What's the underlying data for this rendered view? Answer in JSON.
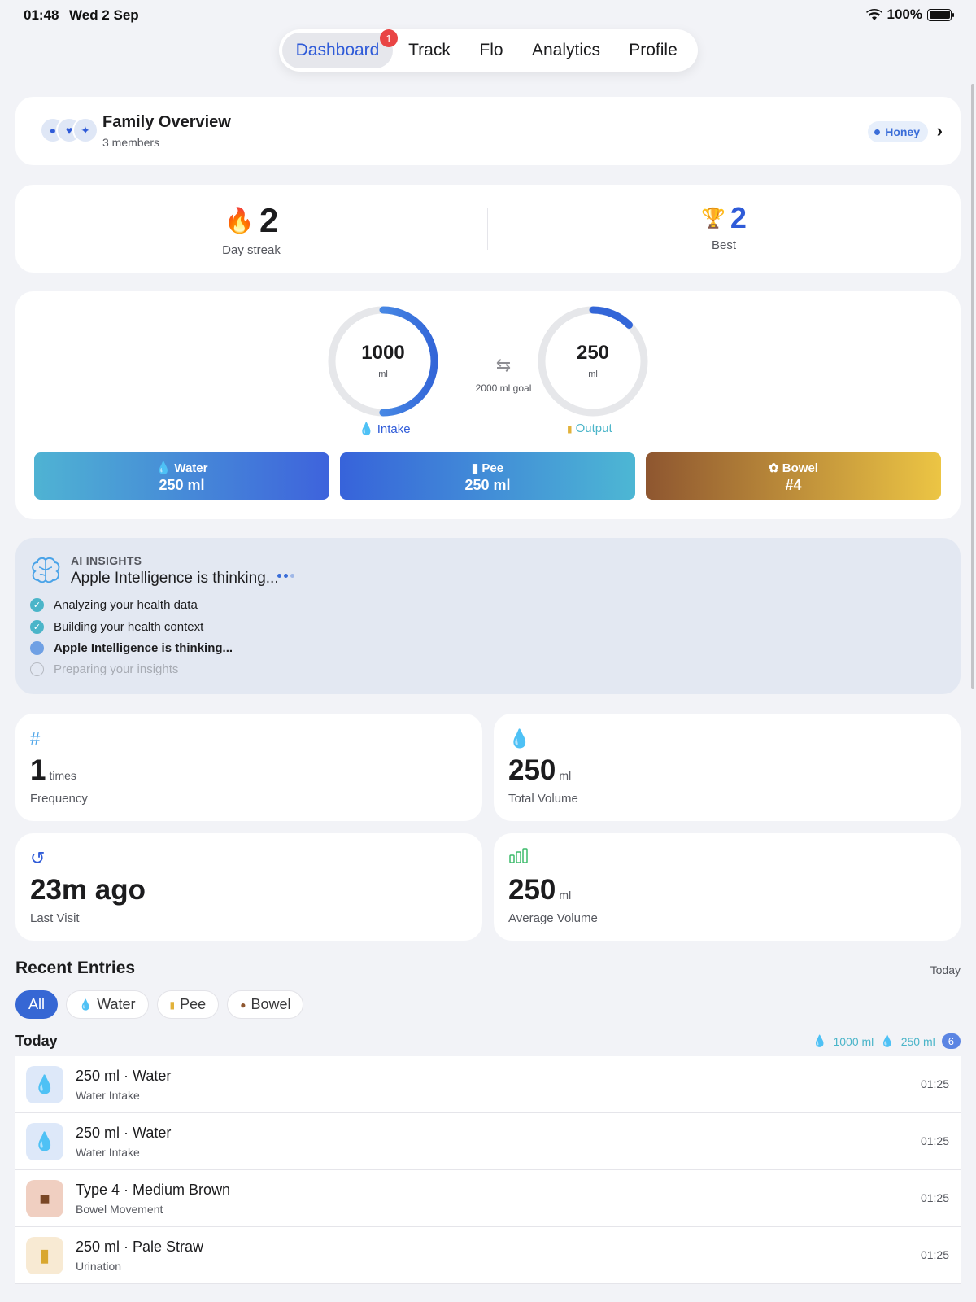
{
  "status": {
    "time": "01:48",
    "date": "Wed 2 Sep",
    "battery": "100%"
  },
  "tabs": [
    {
      "label": "Dashboard",
      "badge": "1"
    },
    {
      "label": "Track"
    },
    {
      "label": "Flo"
    },
    {
      "label": "Analytics"
    },
    {
      "label": "Profile"
    }
  ],
  "family": {
    "title": "Family Overview",
    "members": "3 members",
    "active_member": "Honey"
  },
  "streak": {
    "current": "2",
    "current_label": "Day streak",
    "best": "2",
    "best_label": "Best"
  },
  "balance": {
    "intake_value": "1000",
    "intake_unit": "ml",
    "intake_label": "Intake",
    "intake_progress": 0.5,
    "output_value": "250",
    "output_unit": "ml",
    "output_label": "Output",
    "output_progress": 0.125,
    "goal": "2000 ml goal"
  },
  "quick_add": [
    {
      "title": "Water",
      "value": "250 ml",
      "icon": "drop-icon"
    },
    {
      "title": "Pee",
      "value": "250 ml",
      "icon": "cup-icon"
    },
    {
      "title": "Bowel",
      "value": "#4",
      "icon": "flower-icon"
    }
  ],
  "ai": {
    "kicker": "AI INSIGHTS",
    "heading": "Apple Intelligence is thinking...",
    "steps": [
      {
        "label": "Analyzing your health data",
        "state": "done"
      },
      {
        "label": "Building your health context",
        "state": "done"
      },
      {
        "label": "Apple Intelligence is thinking...",
        "state": "active"
      },
      {
        "label": "Preparing your insights",
        "state": "pending"
      }
    ]
  },
  "stats": [
    {
      "value": "1",
      "unit": "times",
      "label": "Frequency",
      "icon": "hash-icon"
    },
    {
      "value": "250",
      "unit": "ml",
      "label": "Total Volume",
      "icon": "drop-icon"
    },
    {
      "value": "23m ago",
      "unit": "",
      "label": "Last Visit",
      "icon": "history-icon"
    },
    {
      "value": "250",
      "unit": "ml",
      "label": "Average Volume",
      "icon": "bars-icon"
    }
  ],
  "recent": {
    "title": "Recent Entries",
    "range": "Today",
    "filters": [
      "All",
      "Water",
      "Pee",
      "Bowel"
    ],
    "group": "Today",
    "sum_intake": "1000 ml",
    "sum_output": "250 ml",
    "count": "6",
    "entries": [
      {
        "title": "250 ml · Water",
        "subtitle": "Water Intake",
        "time": "01:25",
        "icon": "water-drop-icon"
      },
      {
        "title": "250 ml · Water",
        "subtitle": "Water Intake",
        "time": "01:25",
        "icon": "water-drop-icon"
      },
      {
        "title": "Type 4 · Medium Brown",
        "subtitle": "Bowel Movement",
        "time": "01:25",
        "icon": "bowel-icon"
      },
      {
        "title": "250 ml · Pale Straw",
        "subtitle": "Urination",
        "time": "01:25",
        "icon": "urine-cup-icon"
      }
    ]
  },
  "colors": {
    "accent": "#2f5bd8",
    "teal": "#4bb5c9",
    "bowel_start": "#8e5630",
    "bowel_end": "#ecc544"
  }
}
